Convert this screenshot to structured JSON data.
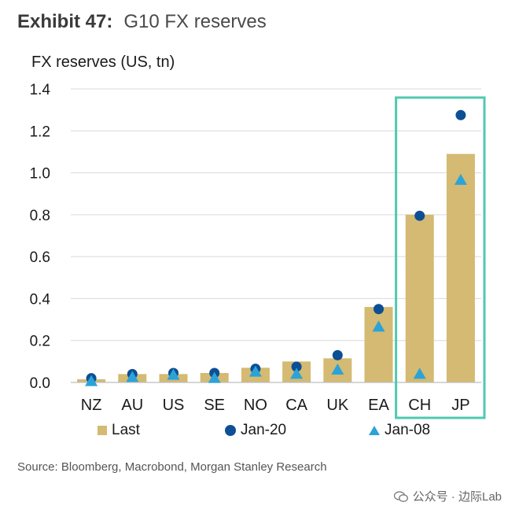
{
  "header": {
    "exhibit": "Exhibit 47:",
    "title": "G10 FX reserves"
  },
  "source": "Source: Bloomberg, Macrobond, Morgan Stanley Research",
  "watermark": {
    "text": "公众号 · 边际Lab",
    "icon": "wechat-icon"
  },
  "colors": {
    "bar": "#d4ba72",
    "dot": "#0c4f94",
    "triangle": "#2ba3d8",
    "highlight": "#4fc9b0",
    "grid": "#d9d9d9"
  },
  "chart_data": {
    "type": "bar",
    "ylabel": "FX reserves (US, tn)",
    "xlabel": "",
    "ylim": [
      0,
      1.4
    ],
    "yticks": [
      "0.0",
      "0.2",
      "0.4",
      "0.6",
      "0.8",
      "1.0",
      "1.2",
      "1.4"
    ],
    "grid": true,
    "legend_position": "bottom",
    "categories": [
      "NZ",
      "AU",
      "US",
      "SE",
      "NO",
      "CA",
      "UK",
      "EA",
      "CH",
      "JP"
    ],
    "highlighted_categories": [
      "CH",
      "JP"
    ],
    "series": [
      {
        "name": "Last",
        "kind": "bar",
        "values": [
          0.015,
          0.04,
          0.04,
          0.045,
          0.07,
          0.1,
          0.115,
          0.36,
          0.8,
          1.09
        ]
      },
      {
        "name": "Jan-20",
        "kind": "dot",
        "values": [
          0.02,
          0.04,
          0.045,
          0.045,
          0.065,
          0.075,
          0.13,
          0.35,
          0.795,
          1.275
        ]
      },
      {
        "name": "Jan-08",
        "kind": "triangle",
        "values": [
          0.005,
          0.025,
          0.035,
          0.02,
          0.05,
          0.04,
          0.06,
          0.265,
          0.04,
          0.965
        ]
      }
    ]
  }
}
